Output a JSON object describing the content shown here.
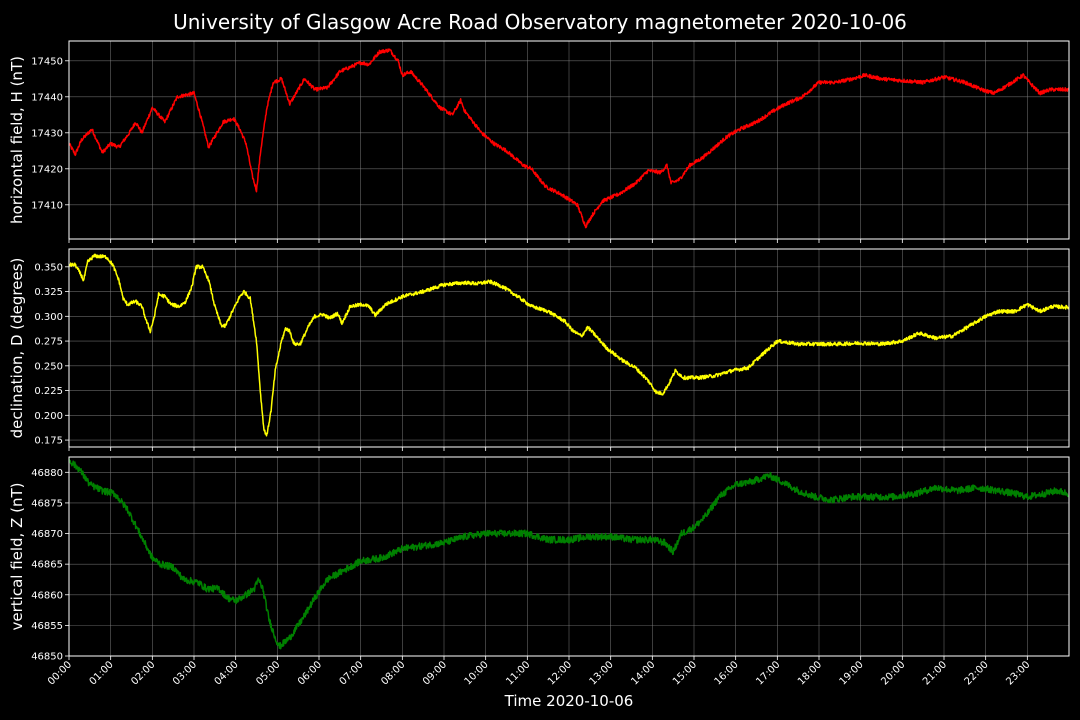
{
  "chart_data": {
    "type": "line",
    "title": "University of Glasgow Acre Road Observatory magnetometer 2020-10-06",
    "xlabel": "Time 2020-10-06",
    "x_ticks": [
      "00:00",
      "01:00",
      "02:00",
      "03:00",
      "04:00",
      "05:00",
      "06:00",
      "07:00",
      "08:00",
      "09:00",
      "10:00",
      "11:00",
      "12:00",
      "13:00",
      "14:00",
      "15:00",
      "16:00",
      "17:00",
      "18:00",
      "19:00",
      "20:00",
      "21:00",
      "22:00",
      "23:00"
    ],
    "xlim": [
      0,
      24
    ],
    "panels": [
      {
        "ylabel": "horizontal field, H (nT)",
        "color": "#ff0000",
        "ylim": [
          17400.5,
          17455.5
        ],
        "y_ticks": [
          17410,
          17420,
          17430,
          17440,
          17450
        ],
        "y_tick_labels": [
          "17410",
          "17420",
          "17430",
          "17440",
          "17450"
        ],
        "noise": 0.5,
        "points": [
          [
            0,
            17427
          ],
          [
            0.15,
            17424
          ],
          [
            0.3,
            17428
          ],
          [
            0.55,
            17431
          ],
          [
            0.8,
            17424.5
          ],
          [
            1.0,
            17427
          ],
          [
            1.2,
            17426
          ],
          [
            1.45,
            17430
          ],
          [
            1.6,
            17433
          ],
          [
            1.75,
            17430
          ],
          [
            2.0,
            17437
          ],
          [
            2.3,
            17433
          ],
          [
            2.6,
            17440
          ],
          [
            3.0,
            17441
          ],
          [
            3.15,
            17435
          ],
          [
            3.35,
            17426
          ],
          [
            3.5,
            17429
          ],
          [
            3.7,
            17433
          ],
          [
            3.95,
            17434
          ],
          [
            4.1,
            17431
          ],
          [
            4.25,
            17427
          ],
          [
            4.4,
            17418
          ],
          [
            4.5,
            17414
          ],
          [
            4.6,
            17425
          ],
          [
            4.75,
            17437
          ],
          [
            4.9,
            17444
          ],
          [
            5.1,
            17445
          ],
          [
            5.3,
            17438
          ],
          [
            5.45,
            17441
          ],
          [
            5.65,
            17445
          ],
          [
            5.9,
            17442
          ],
          [
            6.2,
            17442.5
          ],
          [
            6.5,
            17447
          ],
          [
            7.0,
            17449.5
          ],
          [
            7.2,
            17449
          ],
          [
            7.45,
            17452.5
          ],
          [
            7.7,
            17453
          ],
          [
            7.9,
            17450
          ],
          [
            8.0,
            17446
          ],
          [
            8.2,
            17447
          ],
          [
            8.5,
            17443
          ],
          [
            8.9,
            17437
          ],
          [
            9.2,
            17435
          ],
          [
            9.4,
            17439
          ],
          [
            9.5,
            17436
          ],
          [
            9.9,
            17430
          ],
          [
            10.2,
            17427
          ],
          [
            10.5,
            17425
          ],
          [
            10.9,
            17421
          ],
          [
            11.1,
            17420
          ],
          [
            11.3,
            17417
          ],
          [
            11.45,
            17415
          ],
          [
            11.8,
            17413
          ],
          [
            12.2,
            17410
          ],
          [
            12.4,
            17404
          ],
          [
            12.55,
            17407
          ],
          [
            12.8,
            17411
          ],
          [
            13.2,
            17413
          ],
          [
            13.6,
            17416
          ],
          [
            13.9,
            17419.5
          ],
          [
            14.2,
            17419
          ],
          [
            14.35,
            17421
          ],
          [
            14.45,
            17416
          ],
          [
            14.65,
            17417
          ],
          [
            14.9,
            17421
          ],
          [
            15.2,
            17423
          ],
          [
            15.5,
            17426
          ],
          [
            15.8,
            17429
          ],
          [
            16.1,
            17431
          ],
          [
            16.5,
            17433
          ],
          [
            16.9,
            17436
          ],
          [
            17.2,
            17438
          ],
          [
            17.6,
            17440
          ],
          [
            18.0,
            17444
          ],
          [
            18.4,
            17444
          ],
          [
            18.8,
            17445
          ],
          [
            19.1,
            17446
          ],
          [
            19.5,
            17445
          ],
          [
            20.0,
            17444.5
          ],
          [
            20.5,
            17444
          ],
          [
            21.0,
            17445.5
          ],
          [
            21.5,
            17444
          ],
          [
            21.9,
            17442
          ],
          [
            22.2,
            17441
          ],
          [
            22.5,
            17443
          ],
          [
            22.9,
            17446
          ],
          [
            23.05,
            17444
          ],
          [
            23.3,
            17441
          ],
          [
            23.55,
            17442
          ],
          [
            24.0,
            17442
          ]
        ]
      },
      {
        "ylabel": "declination, D (degrees)",
        "color": "#ffff00",
        "ylim": [
          0.168,
          0.368
        ],
        "y_ticks": [
          0.175,
          0.2,
          0.225,
          0.25,
          0.275,
          0.3,
          0.325,
          0.35
        ],
        "y_tick_labels": [
          "0.175",
          "0.200",
          "0.225",
          "0.250",
          "0.275",
          "0.300",
          "0.325",
          "0.350"
        ],
        "noise": 0.0018,
        "points": [
          [
            0,
            0.352
          ],
          [
            0.15,
            0.352
          ],
          [
            0.3,
            0.341
          ],
          [
            0.35,
            0.336
          ],
          [
            0.45,
            0.355
          ],
          [
            0.6,
            0.361
          ],
          [
            0.9,
            0.36
          ],
          [
            1.05,
            0.352
          ],
          [
            1.2,
            0.336
          ],
          [
            1.3,
            0.318
          ],
          [
            1.4,
            0.312
          ],
          [
            1.6,
            0.315
          ],
          [
            1.75,
            0.31
          ],
          [
            1.85,
            0.296
          ],
          [
            1.95,
            0.285
          ],
          [
            2.05,
            0.3
          ],
          [
            2.15,
            0.322
          ],
          [
            2.3,
            0.32
          ],
          [
            2.45,
            0.312
          ],
          [
            2.65,
            0.31
          ],
          [
            2.8,
            0.315
          ],
          [
            2.95,
            0.33
          ],
          [
            3.05,
            0.35
          ],
          [
            3.2,
            0.35
          ],
          [
            3.35,
            0.337
          ],
          [
            3.5,
            0.31
          ],
          [
            3.65,
            0.291
          ],
          [
            3.75,
            0.29
          ],
          [
            3.9,
            0.303
          ],
          [
            4.1,
            0.32
          ],
          [
            4.2,
            0.325
          ],
          [
            4.35,
            0.318
          ],
          [
            4.5,
            0.275
          ],
          [
            4.6,
            0.22
          ],
          [
            4.68,
            0.185
          ],
          [
            4.75,
            0.18
          ],
          [
            4.85,
            0.205
          ],
          [
            4.95,
            0.245
          ],
          [
            5.1,
            0.275
          ],
          [
            5.2,
            0.288
          ],
          [
            5.3,
            0.285
          ],
          [
            5.4,
            0.272
          ],
          [
            5.55,
            0.272
          ],
          [
            5.75,
            0.29
          ],
          [
            5.9,
            0.3
          ],
          [
            6.1,
            0.302
          ],
          [
            6.25,
            0.298
          ],
          [
            6.45,
            0.303
          ],
          [
            6.55,
            0.293
          ],
          [
            6.75,
            0.31
          ],
          [
            7.05,
            0.312
          ],
          [
            7.2,
            0.31
          ],
          [
            7.35,
            0.301
          ],
          [
            7.6,
            0.312
          ],
          [
            8.0,
            0.32
          ],
          [
            8.5,
            0.325
          ],
          [
            9.0,
            0.332
          ],
          [
            9.5,
            0.334
          ],
          [
            9.8,
            0.333
          ],
          [
            10.1,
            0.335
          ],
          [
            10.4,
            0.33
          ],
          [
            10.7,
            0.322
          ],
          [
            11.1,
            0.31
          ],
          [
            11.5,
            0.305
          ],
          [
            11.9,
            0.295
          ],
          [
            12.1,
            0.285
          ],
          [
            12.3,
            0.28
          ],
          [
            12.45,
            0.289
          ],
          [
            12.65,
            0.28
          ],
          [
            12.9,
            0.268
          ],
          [
            13.3,
            0.255
          ],
          [
            13.6,
            0.248
          ],
          [
            13.9,
            0.235
          ],
          [
            14.1,
            0.223
          ],
          [
            14.25,
            0.222
          ],
          [
            14.4,
            0.232
          ],
          [
            14.55,
            0.245
          ],
          [
            14.75,
            0.238
          ],
          [
            15.1,
            0.238
          ],
          [
            15.5,
            0.24
          ],
          [
            15.9,
            0.245
          ],
          [
            16.3,
            0.248
          ],
          [
            16.6,
            0.26
          ],
          [
            17.0,
            0.275
          ],
          [
            17.5,
            0.272
          ],
          [
            18.0,
            0.272
          ],
          [
            18.5,
            0.272
          ],
          [
            19.0,
            0.273
          ],
          [
            19.5,
            0.272
          ],
          [
            20.0,
            0.275
          ],
          [
            20.4,
            0.283
          ],
          [
            20.8,
            0.278
          ],
          [
            21.2,
            0.28
          ],
          [
            21.6,
            0.29
          ],
          [
            22.0,
            0.3
          ],
          [
            22.3,
            0.305
          ],
          [
            22.7,
            0.305
          ],
          [
            23.0,
            0.312
          ],
          [
            23.3,
            0.305
          ],
          [
            23.6,
            0.31
          ],
          [
            24.0,
            0.309
          ]
        ]
      },
      {
        "ylabel": "vertical field, Z (nT)",
        "color": "#008000",
        "ylim": [
          46850,
          46882.5
        ],
        "y_ticks": [
          46850,
          46855,
          46860,
          46865,
          46870,
          46875,
          46880
        ],
        "y_tick_labels": [
          "46850",
          "46855",
          "46860",
          "46865",
          "46870",
          "46875",
          "46880"
        ],
        "noise": 0.55,
        "points": [
          [
            0,
            46882
          ],
          [
            0.25,
            46880.5
          ],
          [
            0.5,
            46878
          ],
          [
            0.8,
            46877
          ],
          [
            1.1,
            46876.5
          ],
          [
            1.4,
            46874
          ],
          [
            1.7,
            46870
          ],
          [
            2.0,
            46866
          ],
          [
            2.2,
            46865
          ],
          [
            2.5,
            46864.5
          ],
          [
            2.75,
            46862.5
          ],
          [
            3.1,
            46862
          ],
          [
            3.3,
            46861
          ],
          [
            3.6,
            46861
          ],
          [
            3.8,
            46859.5
          ],
          [
            4.0,
            46859
          ],
          [
            4.25,
            46860
          ],
          [
            4.45,
            46861
          ],
          [
            4.55,
            46862.5
          ],
          [
            4.65,
            46861
          ],
          [
            4.8,
            46856
          ],
          [
            4.95,
            46853
          ],
          [
            5.05,
            46851.5
          ],
          [
            5.3,
            46853
          ],
          [
            5.6,
            46856
          ],
          [
            5.9,
            46859.5
          ],
          [
            6.2,
            46862.5
          ],
          [
            6.6,
            46864
          ],
          [
            7.0,
            46865.5
          ],
          [
            7.5,
            46866
          ],
          [
            8.0,
            46867.5
          ],
          [
            8.5,
            46868
          ],
          [
            9.0,
            46868.5
          ],
          [
            9.5,
            46869.5
          ],
          [
            10.0,
            46870
          ],
          [
            10.5,
            46870
          ],
          [
            11.0,
            46870
          ],
          [
            11.5,
            46869
          ],
          [
            12.0,
            46869
          ],
          [
            12.5,
            46869.5
          ],
          [
            13.0,
            46869.5
          ],
          [
            13.5,
            46869
          ],
          [
            14.0,
            46869
          ],
          [
            14.3,
            46868.5
          ],
          [
            14.5,
            46867
          ],
          [
            14.7,
            46870
          ],
          [
            15.0,
            46871
          ],
          [
            15.3,
            46873
          ],
          [
            15.6,
            46876
          ],
          [
            16.0,
            46878
          ],
          [
            16.4,
            46878.5
          ],
          [
            16.8,
            46879.5
          ],
          [
            17.1,
            46878.5
          ],
          [
            17.5,
            46877
          ],
          [
            17.9,
            46876
          ],
          [
            18.3,
            46875.5
          ],
          [
            18.8,
            46876
          ],
          [
            19.3,
            46876
          ],
          [
            19.8,
            46876
          ],
          [
            20.3,
            46876.5
          ],
          [
            20.8,
            46877.5
          ],
          [
            21.3,
            46877
          ],
          [
            21.8,
            46877.5
          ],
          [
            22.3,
            46877
          ],
          [
            22.7,
            46876.5
          ],
          [
            23.0,
            46876
          ],
          [
            23.4,
            46876.5
          ],
          [
            23.7,
            46877
          ],
          [
            24.0,
            46876.5
          ]
        ]
      }
    ]
  }
}
